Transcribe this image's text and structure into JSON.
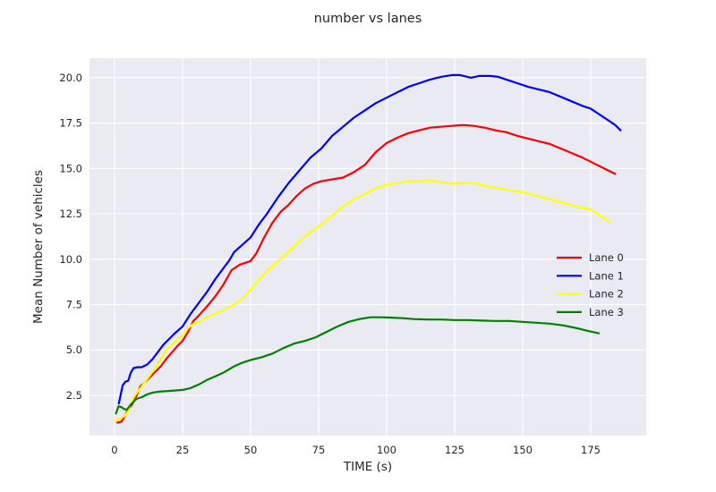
{
  "chart_data": {
    "type": "line",
    "title": "number vs lanes",
    "xlabel": "TIME (s)",
    "ylabel": "Mean Number of vehicles",
    "xlim": [
      -9.2,
      195.4
    ],
    "ylim": [
      0.28,
      21.08
    ],
    "xticks": [
      0,
      25,
      50,
      75,
      100,
      125,
      150,
      175
    ],
    "xtick_labels": [
      "0",
      "25",
      "50",
      "75",
      "100",
      "125",
      "150",
      "175"
    ],
    "yticks": [
      2.5,
      5.0,
      7.5,
      10.0,
      12.5,
      15.0,
      17.5,
      20.0
    ],
    "ytick_labels": [
      "2.5",
      "5.0",
      "7.5",
      "10.0",
      "12.5",
      "15.0",
      "17.5",
      "20.0"
    ],
    "grid": true,
    "legend_position": "center-right",
    "legend_frame": false,
    "colors": {
      "axes_background": "#EAEAF2",
      "gridline": "#FFFFFF",
      "text": "#262626",
      "figure_background": "#FFFFFF"
    },
    "series": [
      {
        "name": "Lane 0",
        "color": "#FF0000",
        "points": [
          [
            1,
            1.0
          ],
          [
            2.5,
            1.05
          ],
          [
            4,
            1.4
          ],
          [
            5,
            1.7
          ],
          [
            6.5,
            2.0
          ],
          [
            8,
            2.45
          ],
          [
            9.5,
            3.0
          ],
          [
            11,
            3.2
          ],
          [
            13,
            3.5
          ],
          [
            15,
            3.8
          ],
          [
            17,
            4.1
          ],
          [
            19,
            4.5
          ],
          [
            21,
            4.85
          ],
          [
            23,
            5.2
          ],
          [
            25,
            5.5
          ],
          [
            27,
            6.0
          ],
          [
            29,
            6.6
          ],
          [
            31,
            6.9
          ],
          [
            34,
            7.4
          ],
          [
            37,
            7.95
          ],
          [
            40,
            8.6
          ],
          [
            43,
            9.4
          ],
          [
            46,
            9.7
          ],
          [
            50,
            9.9
          ],
          [
            52,
            10.3
          ],
          [
            55,
            11.2
          ],
          [
            58,
            12.0
          ],
          [
            61,
            12.6
          ],
          [
            64,
            13.0
          ],
          [
            67,
            13.5
          ],
          [
            70,
            13.9
          ],
          [
            73,
            14.15
          ],
          [
            76,
            14.3
          ],
          [
            80,
            14.4
          ],
          [
            84,
            14.5
          ],
          [
            88,
            14.8
          ],
          [
            92,
            15.2
          ],
          [
            96,
            15.9
          ],
          [
            100,
            16.4
          ],
          [
            104,
            16.7
          ],
          [
            108,
            16.95
          ],
          [
            112,
            17.1
          ],
          [
            116,
            17.25
          ],
          [
            120,
            17.3
          ],
          [
            124,
            17.35
          ],
          [
            128,
            17.4
          ],
          [
            132,
            17.35
          ],
          [
            136,
            17.25
          ],
          [
            140,
            17.1
          ],
          [
            144,
            17.0
          ],
          [
            148,
            16.8
          ],
          [
            152,
            16.65
          ],
          [
            156,
            16.5
          ],
          [
            160,
            16.35
          ],
          [
            164,
            16.1
          ],
          [
            168,
            15.85
          ],
          [
            172,
            15.6
          ],
          [
            176,
            15.3
          ],
          [
            180,
            15.0
          ],
          [
            184,
            14.7
          ]
        ]
      },
      {
        "name": "Lane 1",
        "color": "#0000FF",
        "points": [
          [
            1.6,
            2.05
          ],
          [
            2.2,
            2.5
          ],
          [
            3,
            3.05
          ],
          [
            4,
            3.25
          ],
          [
            5,
            3.3
          ],
          [
            6,
            3.75
          ],
          [
            7,
            4.0
          ],
          [
            8.5,
            4.05
          ],
          [
            10,
            4.05
          ],
          [
            12,
            4.2
          ],
          [
            14,
            4.5
          ],
          [
            16,
            4.9
          ],
          [
            18,
            5.3
          ],
          [
            20,
            5.6
          ],
          [
            22,
            5.9
          ],
          [
            25,
            6.3
          ],
          [
            28,
            7.0
          ],
          [
            31,
            7.6
          ],
          [
            34,
            8.2
          ],
          [
            37,
            8.9
          ],
          [
            40,
            9.5
          ],
          [
            42,
            9.9
          ],
          [
            44,
            10.4
          ],
          [
            47,
            10.8
          ],
          [
            50,
            11.2
          ],
          [
            53,
            11.9
          ],
          [
            56,
            12.5
          ],
          [
            60,
            13.4
          ],
          [
            64,
            14.2
          ],
          [
            68,
            14.9
          ],
          [
            72,
            15.6
          ],
          [
            76,
            16.1
          ],
          [
            80,
            16.8
          ],
          [
            84,
            17.3
          ],
          [
            88,
            17.8
          ],
          [
            92,
            18.2
          ],
          [
            96,
            18.6
          ],
          [
            100,
            18.9
          ],
          [
            104,
            19.2
          ],
          [
            108,
            19.5
          ],
          [
            112,
            19.7
          ],
          [
            116,
            19.9
          ],
          [
            120,
            20.05
          ],
          [
            124,
            20.15
          ],
          [
            127,
            20.15
          ],
          [
            131,
            20.0
          ],
          [
            134,
            20.1
          ],
          [
            138,
            20.1
          ],
          [
            141,
            20.05
          ],
          [
            144,
            19.9
          ],
          [
            148,
            19.7
          ],
          [
            152,
            19.5
          ],
          [
            156,
            19.35
          ],
          [
            160,
            19.2
          ],
          [
            164,
            18.95
          ],
          [
            168,
            18.7
          ],
          [
            172,
            18.45
          ],
          [
            175,
            18.3
          ],
          [
            178,
            18.0
          ],
          [
            181,
            17.7
          ],
          [
            184,
            17.4
          ],
          [
            186,
            17.1
          ]
        ]
      },
      {
        "name": "Lane 2",
        "color": "#FFFF00",
        "points": [
          [
            0,
            1.1
          ],
          [
            2,
            1.2
          ],
          [
            4,
            1.4
          ],
          [
            5,
            1.6
          ],
          [
            6.5,
            2.25
          ],
          [
            8,
            2.6
          ],
          [
            10,
            3.0
          ],
          [
            13,
            3.6
          ],
          [
            16,
            4.25
          ],
          [
            19,
            5.0
          ],
          [
            22,
            5.4
          ],
          [
            25,
            5.8
          ],
          [
            27,
            6.2
          ],
          [
            29,
            6.45
          ],
          [
            31,
            6.55
          ],
          [
            34,
            6.8
          ],
          [
            37,
            7.0
          ],
          [
            40,
            7.2
          ],
          [
            44,
            7.5
          ],
          [
            47,
            7.8
          ],
          [
            50,
            8.3
          ],
          [
            53,
            8.85
          ],
          [
            56,
            9.35
          ],
          [
            59,
            9.75
          ],
          [
            61,
            10.0
          ],
          [
            64,
            10.4
          ],
          [
            68,
            11.0
          ],
          [
            72,
            11.5
          ],
          [
            76,
            11.9
          ],
          [
            80,
            12.4
          ],
          [
            84,
            12.9
          ],
          [
            88,
            13.3
          ],
          [
            92,
            13.6
          ],
          [
            96,
            13.9
          ],
          [
            100,
            14.1
          ],
          [
            104,
            14.2
          ],
          [
            108,
            14.3
          ],
          [
            112,
            14.3
          ],
          [
            116,
            14.35
          ],
          [
            120,
            14.25
          ],
          [
            124,
            14.15
          ],
          [
            128,
            14.2
          ],
          [
            132,
            14.2
          ],
          [
            136,
            14.05
          ],
          [
            140,
            13.95
          ],
          [
            145,
            13.8
          ],
          [
            150,
            13.7
          ],
          [
            155,
            13.5
          ],
          [
            160,
            13.3
          ],
          [
            165,
            13.1
          ],
          [
            170,
            12.9
          ],
          [
            175,
            12.75
          ],
          [
            178,
            12.45
          ],
          [
            182,
            12.05
          ]
        ]
      },
      {
        "name": "Lane 3",
        "color": "#008000",
        "points": [
          [
            0.5,
            1.5
          ],
          [
            1.5,
            1.9
          ],
          [
            2.5,
            1.85
          ],
          [
            3.5,
            1.75
          ],
          [
            4.5,
            1.7
          ],
          [
            6,
            2.0
          ],
          [
            8,
            2.3
          ],
          [
            10,
            2.4
          ],
          [
            12,
            2.55
          ],
          [
            14,
            2.65
          ],
          [
            16,
            2.7
          ],
          [
            18,
            2.72
          ],
          [
            21,
            2.75
          ],
          [
            25,
            2.8
          ],
          [
            28,
            2.9
          ],
          [
            31,
            3.1
          ],
          [
            34,
            3.35
          ],
          [
            37,
            3.55
          ],
          [
            40,
            3.75
          ],
          [
            44,
            4.1
          ],
          [
            47,
            4.3
          ],
          [
            50,
            4.45
          ],
          [
            54,
            4.6
          ],
          [
            58,
            4.8
          ],
          [
            62,
            5.1
          ],
          [
            66,
            5.35
          ],
          [
            70,
            5.5
          ],
          [
            74,
            5.7
          ],
          [
            78,
            6.0
          ],
          [
            82,
            6.3
          ],
          [
            86,
            6.55
          ],
          [
            90,
            6.7
          ],
          [
            94,
            6.8
          ],
          [
            98,
            6.8
          ],
          [
            102,
            6.78
          ],
          [
            106,
            6.75
          ],
          [
            110,
            6.7
          ],
          [
            115,
            6.68
          ],
          [
            120,
            6.68
          ],
          [
            125,
            6.65
          ],
          [
            130,
            6.65
          ],
          [
            135,
            6.62
          ],
          [
            140,
            6.6
          ],
          [
            145,
            6.6
          ],
          [
            150,
            6.55
          ],
          [
            155,
            6.5
          ],
          [
            160,
            6.45
          ],
          [
            165,
            6.35
          ],
          [
            170,
            6.2
          ],
          [
            174,
            6.05
          ],
          [
            178,
            5.92
          ]
        ]
      }
    ]
  }
}
